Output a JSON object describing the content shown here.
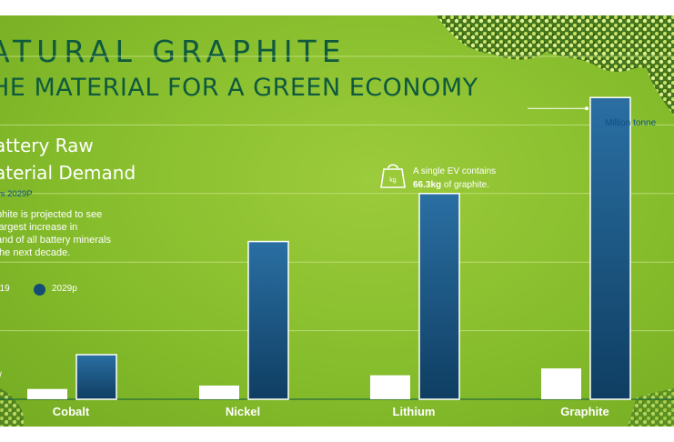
{
  "header": {
    "title": "ATURAL GRAPHITE",
    "subtitle": "HE MATERIAL FOR A GREEN ECONOMY"
  },
  "chart_data": {
    "type": "bar",
    "title_lines": [
      "attery Raw",
      "aterial Demand"
    ],
    "period": "vs 2029P",
    "description_lines": [
      "phite is projected to see",
      "largest increase in",
      "and of all battery minerals",
      "the next decade."
    ],
    "unit_label": "Million tonne",
    "categories": [
      "Cobalt",
      "Nickel",
      "Lithium",
      "Graphite"
    ],
    "series": [
      {
        "name": "019",
        "color": "#ffffff",
        "values": [
          0.15,
          0.2,
          0.35,
          0.45
        ]
      },
      {
        "name": "2029p",
        "color": "#144c77",
        "values": [
          0.65,
          2.3,
          3.0,
          4.4
        ]
      }
    ],
    "ylim": [
      0,
      5
    ],
    "y_tick_visible": "/",
    "grid": true,
    "legend": "left",
    "annotation": {
      "prefix": "A single EV contains",
      "value": "66.3kg",
      "suffix": "of graphite."
    }
  },
  "colors": {
    "background": "#86bd2c",
    "title": "#0f5a3e",
    "accent_blue": "#0e4f86",
    "bar_2029": "#144c77",
    "bar_2019": "#ffffff"
  },
  "icons": {
    "callout": "weight-icon"
  }
}
